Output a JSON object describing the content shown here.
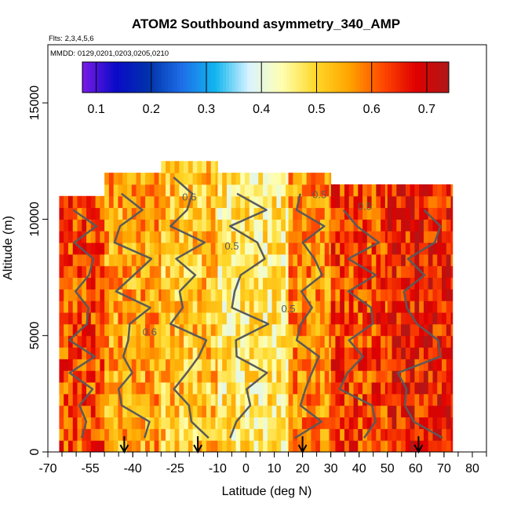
{
  "header": {
    "title": "ATOM2 Southbound asymmetry_340_AMP",
    "flights_note": "Flts: 2,3,4,5,6",
    "dates_note": "MMDD: 0129,0201,0203,0205,0210"
  },
  "colorbar": {
    "stops": [
      "#7a1be6",
      "#0a0ac8",
      "#0033aa",
      "#1e6fe8",
      "#12b6ef",
      "#d9f3ff",
      "#ffffb0",
      "#ffd829",
      "#ffa500",
      "#ff4a00",
      "#e00000",
      "#b01818"
    ],
    "tick_values": [
      "0.1",
      "0.2",
      "0.3",
      "0.4",
      "0.5",
      "0.6",
      "0.7"
    ],
    "range": [
      0.075,
      0.74
    ]
  },
  "chart_data": {
    "type": "heatmap",
    "title": "ATOM2 Southbound asymmetry_340_AMP",
    "xlabel": "Latitude (deg N)",
    "ylabel": "Altitude (m)",
    "xlim": [
      -70,
      85
    ],
    "ylim": [
      0,
      17500
    ],
    "x_ticks": [
      "-70",
      "-55",
      "-40",
      "-25",
      "-10",
      "0",
      "10",
      "20",
      "30",
      "40",
      "50",
      "60",
      "70",
      "80"
    ],
    "x_tick_values": [
      -70,
      -55,
      -40,
      -25,
      -10,
      0,
      10,
      20,
      30,
      40,
      50,
      60,
      70,
      80
    ],
    "x_minor_step": 5,
    "y_ticks": [
      "0",
      "5000",
      "10000",
      "15000"
    ],
    "y_tick_values": [
      0,
      5000,
      10000,
      15000
    ],
    "contour_labels": [
      {
        "text": "0.6",
        "lat": -20,
        "alt": 10800
      },
      {
        "text": "0.5",
        "lat": 26,
        "alt": 10900
      },
      {
        "text": "0.5",
        "lat": 42,
        "alt": 10400
      },
      {
        "text": "0.5",
        "lat": -5,
        "alt": 8700
      },
      {
        "text": "0.5",
        "lat": 15,
        "alt": 6000
      },
      {
        "text": "0.6",
        "lat": -34,
        "alt": 5000
      }
    ],
    "profile_markers_lat": [
      -43,
      -17,
      20,
      61
    ],
    "regions": [
      {
        "lat_range": [
          -66,
          -50
        ],
        "alt_range": [
          0,
          11000
        ],
        "value": 0.62
      },
      {
        "lat_range": [
          -50,
          -30
        ],
        "alt_range": [
          0,
          11700
        ],
        "value": 0.55
      },
      {
        "lat_range": [
          -30,
          -10
        ],
        "alt_range": [
          0,
          12500
        ],
        "value": 0.52
      },
      {
        "lat_range": [
          -10,
          15
        ],
        "alt_range": [
          0,
          11700
        ],
        "value": 0.47
      },
      {
        "lat_range": [
          15,
          30
        ],
        "alt_range": [
          0,
          11700
        ],
        "value": 0.57
      },
      {
        "lat_range": [
          30,
          50
        ],
        "alt_range": [
          0,
          11300
        ],
        "value": 0.63
      },
      {
        "lat_range": [
          50,
          73
        ],
        "alt_range": [
          0,
          11300
        ],
        "value": 0.66
      }
    ]
  }
}
